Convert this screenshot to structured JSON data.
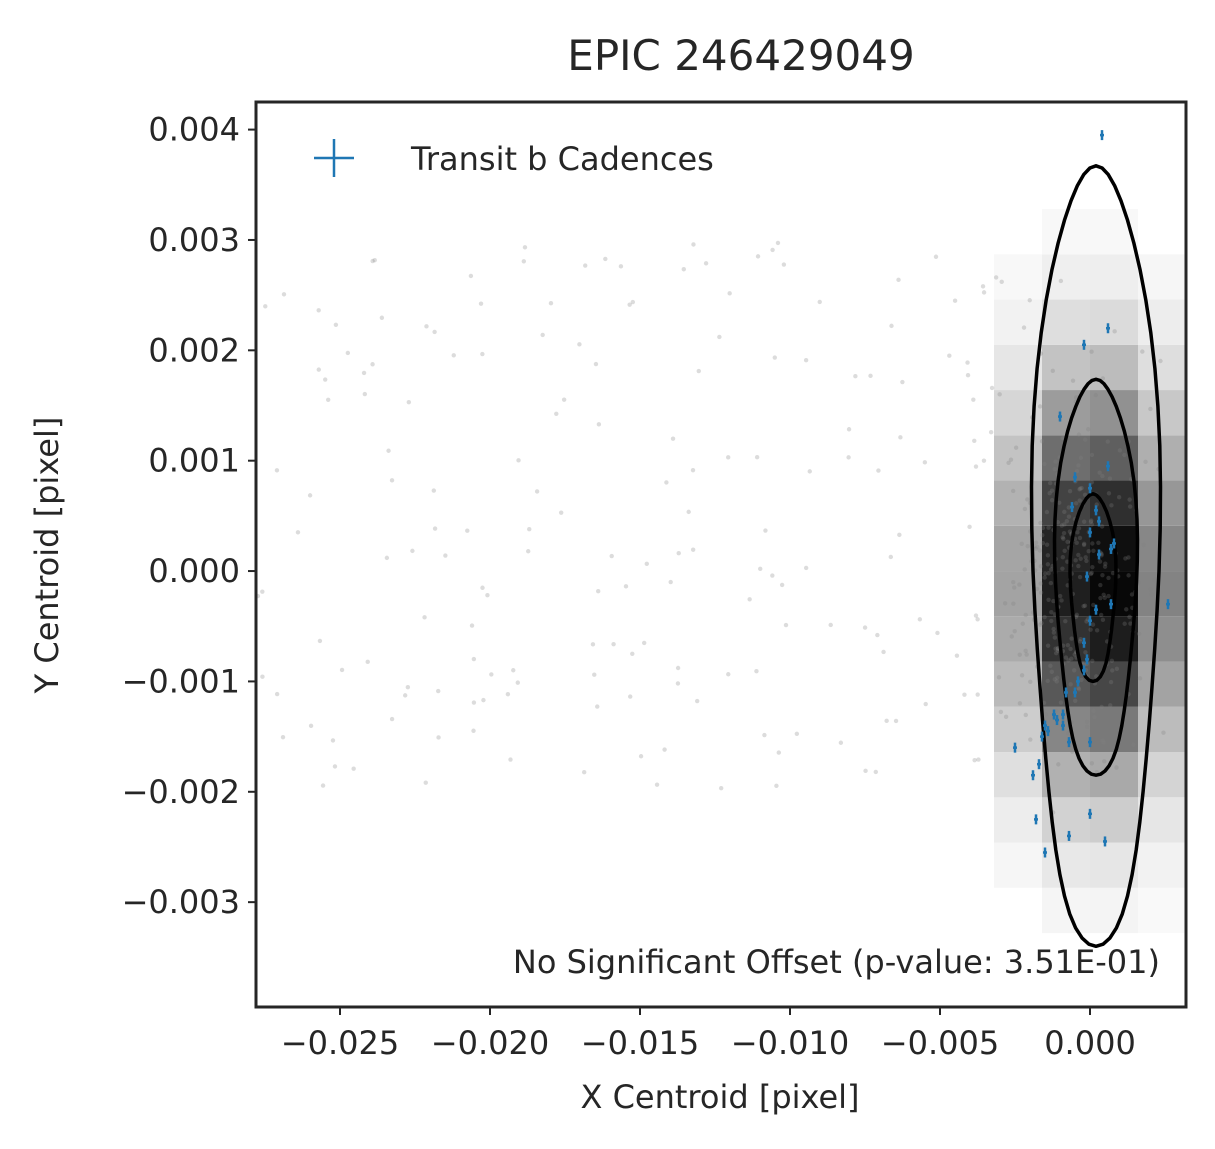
{
  "chart_data": {
    "type": "scatter",
    "title": "EPIC 246429049",
    "xlabel": "X Centroid [pixel]",
    "ylabel": "Y Centroid [pixel]",
    "xlim": [
      -0.0278,
      0.0032
    ],
    "ylim": [
      -0.00395,
      0.00425
    ],
    "x_ticks": [
      -0.025,
      -0.02,
      -0.015,
      -0.01,
      -0.005,
      0.0
    ],
    "x_tick_labels": [
      "−0.025",
      "−0.020",
      "−0.015",
      "−0.010",
      "−0.005",
      "0.000"
    ],
    "y_ticks": [
      0.004,
      0.003,
      0.002,
      0.001,
      0.0,
      -0.001,
      -0.002,
      -0.003
    ],
    "y_tick_labels": [
      "0.004",
      "0.003",
      "0.002",
      "0.001",
      "0.000",
      "−0.001",
      "−0.002",
      "−0.003"
    ],
    "grid": false,
    "legend": {
      "position": "top-left",
      "entries": [
        "Transit b Cadences"
      ]
    },
    "annotation": "No Significant Offset (p-value: 3.51E-01)",
    "colors": {
      "transit": "#1f77b4",
      "background_points": "#808080",
      "contour": "#000000",
      "frame": "#262626"
    },
    "series": [
      {
        "name": "Transit b Cadences",
        "points": [
          [
            0.0004,
            0.00395
          ],
          [
            0.0006,
            0.0022
          ],
          [
            -0.0002,
            0.00205
          ],
          [
            -0.001,
            0.0014
          ],
          [
            0.0006,
            0.00095
          ],
          [
            -0.0005,
            0.00085
          ],
          [
            0.0,
            0.00075
          ],
          [
            -0.0006,
            0.00058
          ],
          [
            0.0002,
            0.00055
          ],
          [
            0.0003,
            0.00045
          ],
          [
            0.0,
            0.00035
          ],
          [
            0.0008,
            0.00025
          ],
          [
            0.0007,
            0.0002
          ],
          [
            0.0003,
            0.00015
          ],
          [
            -0.0001,
            -5e-05
          ],
          [
            0.0007,
            -0.0003
          ],
          [
            0.0002,
            -0.00035
          ],
          [
            0.0,
            -0.00045
          ],
          [
            -0.0002,
            -0.00065
          ],
          [
            -0.0001,
            -0.0008
          ],
          [
            -0.0002,
            -0.0009
          ],
          [
            -0.0004,
            -0.001
          ],
          [
            -0.0005,
            -0.0011
          ],
          [
            -0.0008,
            -0.0011
          ],
          [
            -0.0009,
            -0.0013
          ],
          [
            -0.0012,
            -0.0013
          ],
          [
            -0.0015,
            -0.0014
          ],
          [
            -0.0011,
            -0.00135
          ],
          [
            -0.0009,
            -0.0014
          ],
          [
            -0.0014,
            -0.00145
          ],
          [
            -0.0016,
            -0.0015
          ],
          [
            -0.0007,
            -0.00155
          ],
          [
            0.0,
            -0.00155
          ],
          [
            -0.0025,
            -0.0016
          ],
          [
            -0.0017,
            -0.00175
          ],
          [
            -0.0019,
            -0.00185
          ],
          [
            0.0,
            -0.0022
          ],
          [
            -0.0018,
            -0.00225
          ],
          [
            -0.0007,
            -0.0024
          ],
          [
            0.0005,
            -0.00245
          ],
          [
            -0.0015,
            -0.00255
          ],
          [
            0.0026,
            -0.0003
          ]
        ]
      }
    ]
  }
}
